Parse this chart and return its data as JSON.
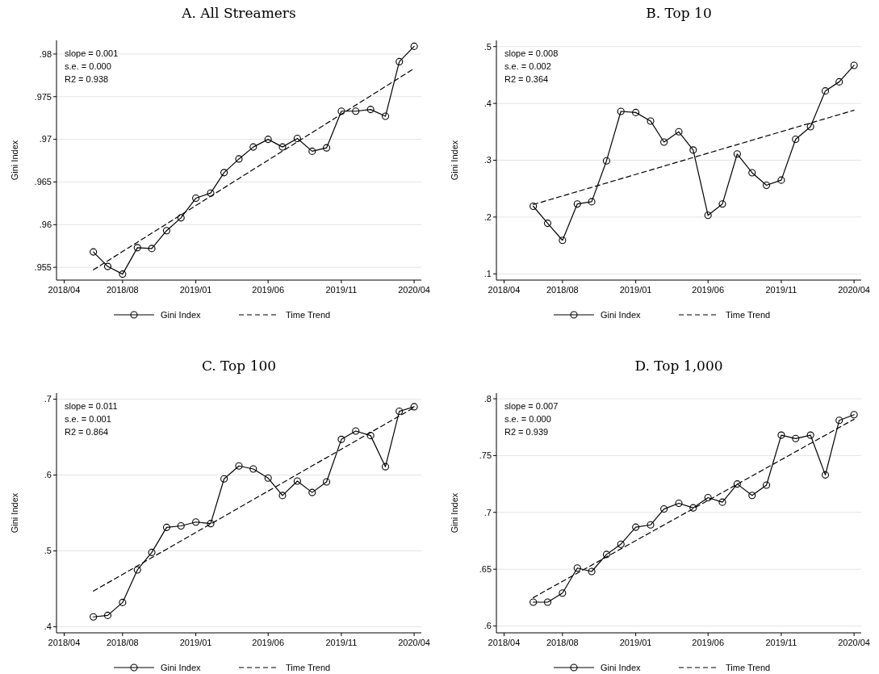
{
  "chart_data": [
    {
      "type": "line",
      "title": "A. All Streamers",
      "ylabel": "Gini Index",
      "x": [
        "2018-06",
        "2018-07",
        "2018-08",
        "2018-09",
        "2018-10",
        "2018-11",
        "2018-12",
        "2019-01",
        "2019-02",
        "2019-03",
        "2019-04",
        "2019-05",
        "2019-06",
        "2019-07",
        "2019-08",
        "2019-09",
        "2019-10",
        "2019-11",
        "2019-12",
        "2020-01",
        "2020-02",
        "2020-03",
        "2020-04"
      ],
      "series": [
        {
          "name": "Gini Index",
          "color": "#000000",
          "marker": "circle",
          "line_style": "solid",
          "values": [
            0.9568,
            0.9551,
            0.9542,
            0.9573,
            0.9572,
            0.9593,
            0.9608,
            0.9631,
            0.9637,
            0.9661,
            0.9677,
            0.9691,
            0.97,
            0.9691,
            0.9701,
            0.9686,
            0.969,
            0.9733,
            0.9733,
            0.9735,
            0.9727,
            0.9791,
            0.9809
          ]
        },
        {
          "name": "Time Trend",
          "color": "#000000",
          "marker": "none",
          "line_style": "dashed",
          "x": [
            "2018-06",
            "2020-04"
          ],
          "values": [
            0.9547,
            0.9783
          ]
        }
      ],
      "xlim": [
        "2018-03-16",
        "2020-04-16"
      ],
      "xticks": [
        {
          "value": "2018-04",
          "label": "2018/04"
        },
        {
          "value": "2018-08",
          "label": "2018/08"
        },
        {
          "value": "2019-01",
          "label": "2019/01"
        },
        {
          "value": "2019-06",
          "label": "2019/06"
        },
        {
          "value": "2019-11",
          "label": "2019/11"
        },
        {
          "value": "2020-04",
          "label": "2020/04"
        }
      ],
      "ylim": [
        0.9535,
        0.9816
      ],
      "yticks": [
        {
          "value": 0.955,
          "label": ".955"
        },
        {
          "value": 0.96,
          "label": ".96"
        },
        {
          "value": 0.965,
          "label": ".965"
        },
        {
          "value": 0.97,
          "label": ".97"
        },
        {
          "value": 0.975,
          "label": ".975"
        },
        {
          "value": 0.98,
          "label": ".98"
        }
      ],
      "grid": "y",
      "legend": "bottom",
      "annotations": [
        "slope = 0.001",
        "s.e. = 0.000",
        "R2 = 0.938"
      ]
    },
    {
      "type": "line",
      "title": "B. Top 10",
      "ylabel": "Gini Index",
      "x": [
        "2018-06",
        "2018-07",
        "2018-08",
        "2018-09",
        "2018-10",
        "2018-11",
        "2018-12",
        "2019-01",
        "2019-02",
        "2019-03",
        "2019-04",
        "2019-05",
        "2019-06",
        "2019-07",
        "2019-08",
        "2019-09",
        "2019-10",
        "2019-11",
        "2019-12",
        "2020-01",
        "2020-02",
        "2020-03",
        "2020-04"
      ],
      "series": [
        {
          "name": "Gini Index",
          "color": "#000000",
          "marker": "circle",
          "line_style": "solid",
          "values": [
            0.219,
            0.189,
            0.159,
            0.223,
            0.227,
            0.299,
            0.386,
            0.384,
            0.369,
            0.332,
            0.35,
            0.318,
            0.203,
            0.223,
            0.311,
            0.278,
            0.256,
            0.265,
            0.337,
            0.359,
            0.422,
            0.438,
            0.467
          ]
        },
        {
          "name": "Time Trend",
          "color": "#000000",
          "marker": "none",
          "line_style": "dashed",
          "x": [
            "2018-06",
            "2020-04"
          ],
          "values": [
            0.222,
            0.388
          ]
        }
      ],
      "xlim": [
        "2018-03-16",
        "2020-04-16"
      ],
      "xticks": [
        {
          "value": "2018-04",
          "label": "2018/04"
        },
        {
          "value": "2018-08",
          "label": "2018/08"
        },
        {
          "value": "2019-01",
          "label": "2019/01"
        },
        {
          "value": "2019-06",
          "label": "2019/06"
        },
        {
          "value": "2019-11",
          "label": "2019/11"
        },
        {
          "value": "2020-04",
          "label": "2020/04"
        }
      ],
      "ylim": [
        0.089,
        0.511
      ],
      "yticks": [
        {
          "value": 0.1,
          "label": ".1"
        },
        {
          "value": 0.2,
          "label": ".2"
        },
        {
          "value": 0.3,
          "label": ".3"
        },
        {
          "value": 0.4,
          "label": ".4"
        },
        {
          "value": 0.5,
          "label": ".5"
        }
      ],
      "grid": "y",
      "legend": "bottom",
      "annotations": [
        "slope = 0.008",
        "s.e. = 0.002",
        "R2 = 0.364"
      ]
    },
    {
      "type": "line",
      "title": "C. Top 100",
      "ylabel": "Gini Index",
      "x": [
        "2018-06",
        "2018-07",
        "2018-08",
        "2018-09",
        "2018-10",
        "2018-11",
        "2018-12",
        "2019-01",
        "2019-02",
        "2019-03",
        "2019-04",
        "2019-05",
        "2019-06",
        "2019-07",
        "2019-08",
        "2019-09",
        "2019-10",
        "2019-11",
        "2019-12",
        "2020-01",
        "2020-02",
        "2020-03",
        "2020-04"
      ],
      "series": [
        {
          "name": "Gini Index",
          "color": "#000000",
          "marker": "circle",
          "line_style": "solid",
          "values": [
            0.413,
            0.415,
            0.432,
            0.475,
            0.498,
            0.531,
            0.533,
            0.538,
            0.536,
            0.595,
            0.612,
            0.608,
            0.596,
            0.573,
            0.592,
            0.577,
            0.591,
            0.647,
            0.658,
            0.652,
            0.611,
            0.684,
            0.69
          ]
        },
        {
          "name": "Time Trend",
          "color": "#000000",
          "marker": "none",
          "line_style": "dashed",
          "x": [
            "2018-06",
            "2020-04"
          ],
          "values": [
            0.447,
            0.689
          ]
        }
      ],
      "xlim": [
        "2018-03-16",
        "2020-04-16"
      ],
      "xticks": [
        {
          "value": "2018-04",
          "label": "2018/04"
        },
        {
          "value": "2018-08",
          "label": "2018/08"
        },
        {
          "value": "2019-01",
          "label": "2019/01"
        },
        {
          "value": "2019-06",
          "label": "2019/06"
        },
        {
          "value": "2019-11",
          "label": "2019/11"
        },
        {
          "value": "2020-04",
          "label": "2020/04"
        }
      ],
      "ylim": [
        0.392,
        0.708
      ],
      "yticks": [
        {
          "value": 0.4,
          "label": ".4"
        },
        {
          "value": 0.5,
          "label": ".5"
        },
        {
          "value": 0.6,
          "label": ".6"
        },
        {
          "value": 0.7,
          "label": ".7"
        }
      ],
      "grid": "y",
      "legend": "bottom",
      "annotations": [
        "slope = 0.011",
        "s.e. = 0.001",
        "R2 = 0.864"
      ]
    },
    {
      "type": "line",
      "title": "D. Top 1,000",
      "ylabel": "Gini Index",
      "x": [
        "2018-06",
        "2018-07",
        "2018-08",
        "2018-09",
        "2018-10",
        "2018-11",
        "2018-12",
        "2019-01",
        "2019-02",
        "2019-03",
        "2019-04",
        "2019-05",
        "2019-06",
        "2019-07",
        "2019-08",
        "2019-09",
        "2019-10",
        "2019-11",
        "2019-12",
        "2020-01",
        "2020-02",
        "2020-03",
        "2020-04"
      ],
      "series": [
        {
          "name": "Gini Index",
          "color": "#000000",
          "marker": "circle",
          "line_style": "solid",
          "values": [
            0.621,
            0.621,
            0.629,
            0.651,
            0.648,
            0.663,
            0.672,
            0.687,
            0.689,
            0.703,
            0.708,
            0.704,
            0.713,
            0.709,
            0.725,
            0.715,
            0.724,
            0.768,
            0.765,
            0.768,
            0.733,
            0.781,
            0.786
          ]
        },
        {
          "name": "Time Trend",
          "color": "#000000",
          "marker": "none",
          "line_style": "dashed",
          "x": [
            "2018-06",
            "2020-04"
          ],
          "values": [
            0.625,
            0.782
          ]
        }
      ],
      "xlim": [
        "2018-03-16",
        "2020-04-16"
      ],
      "xticks": [
        {
          "value": "2018-04",
          "label": "2018/04"
        },
        {
          "value": "2018-08",
          "label": "2018/08"
        },
        {
          "value": "2019-01",
          "label": "2019/01"
        },
        {
          "value": "2019-06",
          "label": "2019/06"
        },
        {
          "value": "2019-11",
          "label": "2019/11"
        },
        {
          "value": "2020-04",
          "label": "2020/04"
        }
      ],
      "ylim": [
        0.594,
        0.805
      ],
      "yticks": [
        {
          "value": 0.6,
          "label": ".6"
        },
        {
          "value": 0.65,
          "label": ".65"
        },
        {
          "value": 0.7,
          "label": ".7"
        },
        {
          "value": 0.75,
          "label": ".75"
        },
        {
          "value": 0.8,
          "label": ".8"
        }
      ],
      "grid": "y",
      "legend": "bottom",
      "annotations": [
        "slope = 0.007",
        "s.e. = 0.000",
        "R2 = 0.939"
      ]
    }
  ]
}
